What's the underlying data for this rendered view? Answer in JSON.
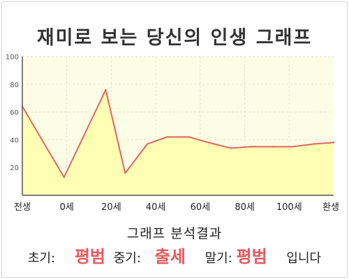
{
  "title": "재미로 보는 당신의 인생 그래프",
  "chart_data": {
    "type": "area",
    "x_labels": [
      "전생",
      "0세",
      "20세",
      "40세",
      "60세",
      "80세",
      "100세",
      "환생"
    ],
    "y_ticks": [
      20,
      40,
      60,
      80,
      100
    ],
    "ylim": [
      0,
      100
    ],
    "grid": true,
    "series": [
      {
        "x": [
          -15,
          0,
          15,
          22,
          30,
          37,
          45,
          52,
          60,
          67,
          75,
          82,
          90,
          97
        ],
        "y": [
          64,
          13,
          76,
          16,
          37,
          42,
          42,
          38,
          34,
          35,
          35,
          35,
          37,
          38
        ]
      }
    ],
    "colors": {
      "line": "#e06666",
      "fill": "#ffffb4",
      "plot_bg": "#fdfde6",
      "grid": "#e6e6c8"
    }
  },
  "analysis": {
    "heading": "그래프 분석결과",
    "early_label": "초기:",
    "early_value": "평범",
    "mid_label": "중기:",
    "mid_value": "출세",
    "late_label": "말기:",
    "late_value": "평범",
    "suffix": "입니다"
  }
}
